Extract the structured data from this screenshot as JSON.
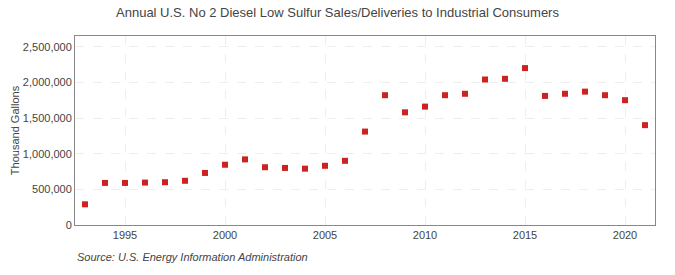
{
  "chart_data": {
    "type": "scatter",
    "title": "Annual U.S. No 2 Diesel Low Sulfur Sales/Deliveries to Industrial Consumers",
    "ylabel": "Thousand Gallons",
    "annotations": [
      "Source: U.S. Energy Information Administration"
    ],
    "x": [
      1993,
      1994,
      1995,
      1996,
      1997,
      1998,
      1999,
      2000,
      2001,
      2002,
      2003,
      2004,
      2005,
      2006,
      2007,
      2008,
      2009,
      2010,
      2011,
      2012,
      2013,
      2014,
      2015,
      2016,
      2017,
      2018,
      2019,
      2020,
      2021
    ],
    "values": [
      290000,
      590000,
      590000,
      595000,
      600000,
      620000,
      730000,
      845000,
      920000,
      810000,
      800000,
      790000,
      830000,
      900000,
      1310000,
      1820000,
      1580000,
      1660000,
      1820000,
      1840000,
      2040000,
      2050000,
      2200000,
      1810000,
      1840000,
      1870000,
      1820000,
      1750000,
      1400000
    ],
    "color": "#cc2222",
    "marker": "square",
    "xlim": [
      1992.5,
      2021.5
    ],
    "xticks": [
      1995,
      2000,
      2005,
      2010,
      2015,
      2020
    ],
    "ylim": [
      0,
      2650000
    ],
    "yticks": [
      0,
      {
        "value": 500000,
        "label": "500,000"
      },
      {
        "value": 1000000,
        "label": "1,000,000"
      },
      {
        "value": 1500000,
        "label": "1,500,000"
      },
      {
        "value": 2000000,
        "label": "2,000,000"
      },
      {
        "value": 2500000,
        "label": "2,500,000"
      }
    ],
    "grid": true
  }
}
